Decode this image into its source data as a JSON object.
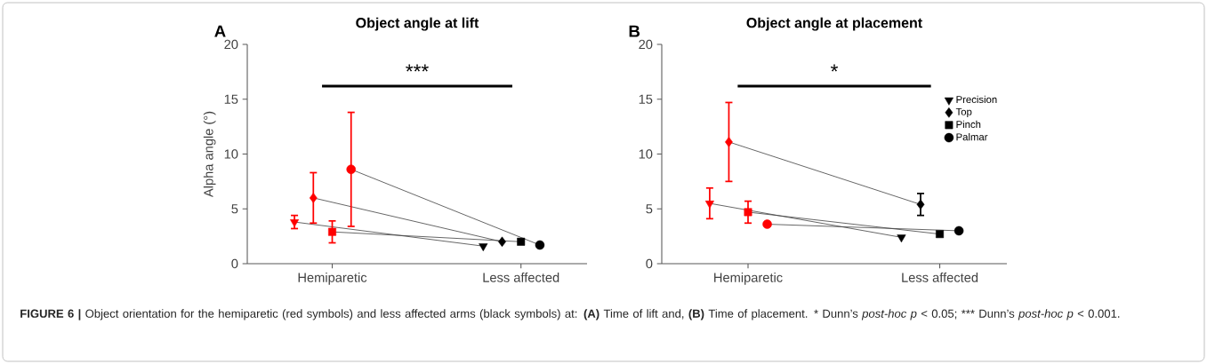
{
  "chart_data": [
    {
      "type": "line",
      "title": "Object angle at lift",
      "ylabel": "Alpha angle (°)",
      "annotations": [
        "A",
        "***"
      ],
      "categories": [
        null,
        null,
        "Hemiparetic",
        null,
        null,
        null,
        null,
        null,
        null,
        null,
        null,
        null,
        "Less affected",
        null
      ],
      "ylim": [
        0,
        20
      ],
      "yticks": [
        0,
        5,
        10,
        15,
        20
      ],
      "series": [
        {
          "marker": "triangle",
          "color": "#404040",
          "colors": [
            "#ff0000",
            null,
            null,
            null,
            null,
            null,
            null,
            null,
            null,
            null,
            "#000000",
            null,
            null,
            null
          ],
          "values": [
            3.8,
            null,
            null,
            null,
            null,
            null,
            null,
            null,
            null,
            null,
            1.6,
            null,
            null,
            null
          ],
          "errors": [
            0.6,
            null,
            null,
            null,
            null,
            null,
            null,
            null,
            null,
            null,
            null,
            null,
            null,
            null
          ]
        },
        {
          "marker": "diamond",
          "color": "#404040",
          "colors": [
            null,
            "#ff0000",
            null,
            null,
            null,
            null,
            null,
            null,
            null,
            null,
            null,
            "#000000",
            null,
            null
          ],
          "values": [
            null,
            6.0,
            null,
            null,
            null,
            null,
            null,
            null,
            null,
            null,
            null,
            2.0,
            null,
            null
          ],
          "errors": [
            null,
            2.3,
            null,
            null,
            null,
            null,
            null,
            null,
            null,
            null,
            null,
            null,
            null,
            null
          ]
        },
        {
          "marker": "square",
          "color": "#404040",
          "colors": [
            null,
            null,
            "#ff0000",
            null,
            null,
            null,
            null,
            null,
            null,
            null,
            null,
            null,
            "#000000",
            null
          ],
          "values": [
            null,
            null,
            2.9,
            null,
            null,
            null,
            null,
            null,
            null,
            null,
            null,
            null,
            2.0,
            null
          ],
          "errors": [
            null,
            null,
            1.0,
            null,
            null,
            null,
            null,
            null,
            null,
            null,
            null,
            null,
            null,
            null
          ]
        },
        {
          "marker": "circle",
          "color": "#404040",
          "colors": [
            null,
            null,
            null,
            "#ff0000",
            null,
            null,
            null,
            null,
            null,
            null,
            null,
            null,
            null,
            "#000000"
          ],
          "values": [
            null,
            null,
            null,
            8.6,
            null,
            null,
            null,
            null,
            null,
            null,
            null,
            null,
            null,
            1.7
          ],
          "errors": [
            null,
            null,
            null,
            5.2,
            null,
            null,
            null,
            null,
            null,
            null,
            null,
            null,
            null,
            null
          ]
        }
      ]
    },
    {
      "type": "line",
      "title": "Object angle at placement",
      "annotations": [
        "B",
        "*",
        "**FIGURE 6 |** Object orientation for the hemiparetic (red symbols) and less affected arms (black symbols) at: **(A)** Time of lift and, **(B)** Time of placement.",
        "*",
        "Dunn’s *post-hoc p* < 0.05;",
        "***",
        "Dunn’s *post-hoc p* < 0.001."
      ],
      "legend": "right",
      "categories": [
        null,
        null,
        "Hemiparetic",
        null,
        null,
        null,
        null,
        null,
        null,
        null,
        null,
        null,
        "Less affected",
        null
      ],
      "ylim": [
        0,
        20
      ],
      "yticks": [
        0,
        5,
        10,
        15,
        20
      ],
      "series": [
        {
          "name": "Precision",
          "marker": "triangle",
          "color": "#404040",
          "colors": [
            "#ff0000",
            null,
            null,
            null,
            null,
            null,
            null,
            null,
            null,
            null,
            "#000000",
            null,
            null,
            null
          ],
          "values": [
            5.5,
            null,
            null,
            null,
            null,
            null,
            null,
            null,
            null,
            null,
            2.4,
            null,
            null,
            null
          ],
          "errors": [
            1.4,
            null,
            null,
            null,
            null,
            null,
            null,
            null,
            null,
            null,
            null,
            null,
            null,
            null
          ]
        },
        {
          "name": "Top",
          "marker": "diamond",
          "color": "#404040",
          "colors": [
            null,
            "#ff0000",
            null,
            null,
            null,
            null,
            null,
            null,
            null,
            null,
            null,
            "#000000",
            null,
            null
          ],
          "values": [
            null,
            11.1,
            null,
            null,
            null,
            null,
            null,
            null,
            null,
            null,
            null,
            5.4,
            null,
            null
          ],
          "errors": [
            null,
            3.6,
            null,
            null,
            null,
            null,
            null,
            null,
            null,
            null,
            null,
            1.0,
            null,
            null
          ]
        },
        {
          "name": "Pinch",
          "marker": "square",
          "color": "#404040",
          "colors": [
            null,
            null,
            "#ff0000",
            null,
            null,
            null,
            null,
            null,
            null,
            null,
            null,
            null,
            "#000000",
            null
          ],
          "values": [
            null,
            null,
            4.7,
            null,
            null,
            null,
            null,
            null,
            null,
            null,
            null,
            null,
            2.7,
            null
          ],
          "errors": [
            null,
            null,
            1.0,
            null,
            null,
            null,
            null,
            null,
            null,
            null,
            null,
            null,
            null,
            null
          ]
        },
        {
          "name": "Palmar",
          "marker": "circle",
          "color": "#404040",
          "colors": [
            null,
            null,
            null,
            "#ff0000",
            null,
            null,
            null,
            null,
            null,
            null,
            null,
            null,
            null,
            "#000000"
          ],
          "values": [
            null,
            null,
            null,
            3.6,
            null,
            null,
            null,
            null,
            null,
            null,
            null,
            null,
            null,
            3.0
          ]
        }
      ]
    }
  ]
}
